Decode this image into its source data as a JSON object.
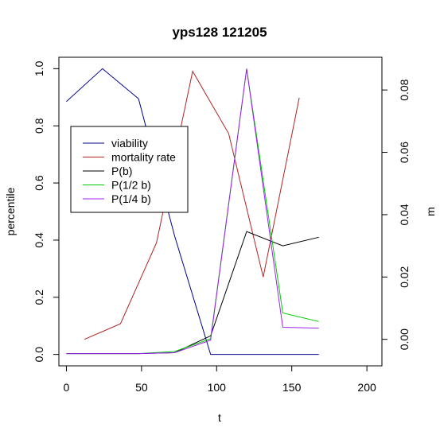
{
  "chart_data": {
    "type": "line",
    "title": "yps128 121205",
    "xlabel": "t",
    "ylabel": "percentile",
    "y2label": "m",
    "xlim": [
      -5,
      210
    ],
    "ylim": [
      -0.04,
      1.04
    ],
    "y2lim": [
      -0.0085,
      0.0905
    ],
    "xticks": [
      0,
      50,
      100,
      150,
      200
    ],
    "xtick_labels": [
      "0",
      "50",
      "100",
      "150",
      "200"
    ],
    "yticks": [
      0.0,
      0.2,
      0.4,
      0.6,
      0.8,
      1.0
    ],
    "ytick_labels": [
      "0.0",
      "0.2",
      "0.4",
      "0.6",
      "0.8",
      "1.0"
    ],
    "y2ticks": [
      0.0,
      0.02,
      0.04,
      0.06,
      0.08
    ],
    "y2tick_labels": [
      "0.00",
      "0.02",
      "0.04",
      "0.06",
      "0.08"
    ],
    "grid": false,
    "legend_position": "upper-left",
    "series": [
      {
        "name": "viability",
        "color": "#00008b",
        "axis": "left",
        "x": [
          0,
          24,
          48,
          72,
          96,
          120,
          144,
          168
        ],
        "y": [
          0.885,
          1.0,
          0.895,
          0.415,
          0.0,
          0.0,
          0.0,
          0.0
        ]
      },
      {
        "name": "mortality rate",
        "color": "#b22222",
        "axis": "right",
        "x": [
          12,
          36,
          60,
          84,
          108,
          131,
          155
        ],
        "y": [
          0.0,
          0.005,
          0.031,
          0.086,
          0.066,
          0.02,
          0.0775
        ]
      },
      {
        "name": "P(b)",
        "color": "#000000",
        "axis": "left",
        "x": [
          0,
          24,
          48,
          72,
          96,
          120,
          144,
          168
        ],
        "y": [
          0.003,
          0.003,
          0.003,
          0.006,
          0.065,
          0.43,
          0.38,
          0.41
        ]
      },
      {
        "name": "P(1/2 b)",
        "color": "#00cd00",
        "axis": "left",
        "x": [
          0,
          24,
          48,
          72,
          96,
          120,
          144,
          168
        ],
        "y": [
          0.003,
          0.003,
          0.003,
          0.01,
          0.055,
          1.0,
          0.145,
          0.115
        ]
      },
      {
        "name": "P(1/4 b)",
        "color": "#a020f0",
        "axis": "left",
        "x": [
          0,
          24,
          48,
          72,
          96,
          120,
          144,
          168
        ],
        "y": [
          0.003,
          0.003,
          0.003,
          0.006,
          0.05,
          1.0,
          0.095,
          0.092
        ]
      }
    ]
  }
}
